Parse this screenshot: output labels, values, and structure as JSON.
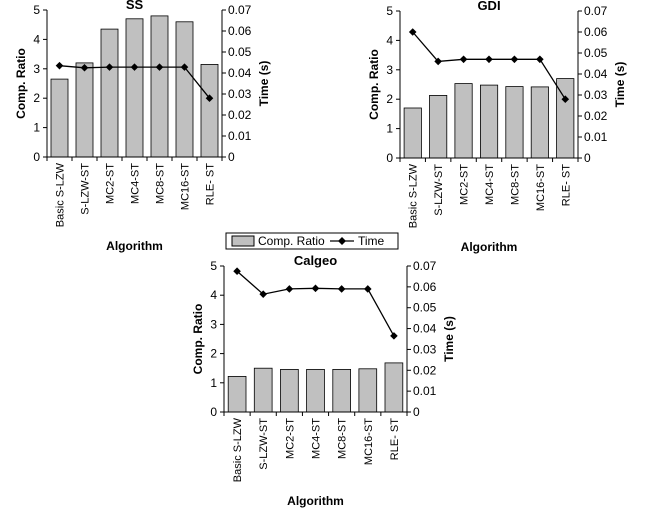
{
  "colors": {
    "bar_fill": "#c0c0c0",
    "bar_stroke": "#000000",
    "line": "#000000",
    "marker": "#000000",
    "background": "#ffffff"
  },
  "legend": {
    "items": [
      {
        "label": "Comp. Ratio",
        "symbol": "bar"
      },
      {
        "label": "Time",
        "symbol": "line-diamond"
      }
    ],
    "placement": "center"
  },
  "chart_data": [
    {
      "type": "bar",
      "title": "SS",
      "xlabel": "Algorithm",
      "ylabel": "Comp. Ratio",
      "y2label": "Time (s)",
      "categories": [
        "Basic S-LZW",
        "S-LZW-ST",
        "MC2-ST",
        "MC4-ST",
        "MC8-ST",
        "MC16-ST",
        "RLE- ST"
      ],
      "ylim": [
        0,
        5
      ],
      "yticks": [
        0,
        1,
        2,
        3,
        4,
        5
      ],
      "y2lim": [
        0,
        0.07
      ],
      "y2ticks": [
        "0",
        "0.01",
        "0.02",
        "0.03",
        "0.04",
        "0.05",
        "0.06",
        "0.07"
      ],
      "grid": false,
      "series": [
        {
          "name": "Comp. Ratio",
          "type": "bar",
          "axis": "left",
          "values": [
            2.65,
            3.2,
            4.35,
            4.7,
            4.8,
            4.6,
            3.15
          ]
        },
        {
          "name": "Time",
          "type": "line",
          "axis": "right",
          "marker": "diamond",
          "values": [
            0.0435,
            0.0425,
            0.0428,
            0.0428,
            0.0428,
            0.0428,
            0.028
          ]
        }
      ]
    },
    {
      "type": "bar",
      "title": "GDI",
      "xlabel": "Algorithm",
      "ylabel": "Comp. Ratio",
      "y2label": "Time (s)",
      "categories": [
        "Basic S-LZW",
        "S-LZW-ST",
        "MC2-ST",
        "MC4-ST",
        "MC8-ST",
        "MC16-ST",
        "RLE- ST"
      ],
      "ylim": [
        0,
        5
      ],
      "yticks": [
        0,
        1,
        2,
        3,
        4,
        5
      ],
      "y2lim": [
        0,
        0.07
      ],
      "y2ticks": [
        "0",
        "0.01",
        "0.02",
        "0.03",
        "0.04",
        "0.05",
        "0.06",
        "0.07"
      ],
      "grid": false,
      "series": [
        {
          "name": "Comp. Ratio",
          "type": "bar",
          "axis": "left",
          "values": [
            1.7,
            2.13,
            2.53,
            2.48,
            2.43,
            2.42,
            2.7
          ]
        },
        {
          "name": "Time",
          "type": "line",
          "axis": "right",
          "marker": "diamond",
          "values": [
            0.06,
            0.046,
            0.047,
            0.047,
            0.047,
            0.047,
            0.028
          ]
        }
      ]
    },
    {
      "type": "bar",
      "title": "Calgeo",
      "xlabel": "Algorithm",
      "ylabel": "Comp. Ratio",
      "y2label": "Time (s)",
      "categories": [
        "Basic S-LZW",
        "S-LZW-ST",
        "MC2-ST",
        "MC4-ST",
        "MC8-ST",
        "MC16-ST",
        "RLE- ST"
      ],
      "ylim": [
        0,
        5
      ],
      "yticks": [
        0,
        1,
        2,
        3,
        4,
        5
      ],
      "y2lim": [
        0,
        0.07
      ],
      "y2ticks": [
        "0",
        "0.01",
        "0.02",
        "0.03",
        "0.04",
        "0.05",
        "0.06",
        "0.07"
      ],
      "grid": false,
      "series": [
        {
          "name": "Comp. Ratio",
          "type": "bar",
          "axis": "left",
          "values": [
            1.22,
            1.5,
            1.46,
            1.46,
            1.46,
            1.48,
            1.68
          ]
        },
        {
          "name": "Time",
          "type": "line",
          "axis": "right",
          "marker": "diamond",
          "values": [
            0.0675,
            0.0565,
            0.059,
            0.0593,
            0.059,
            0.059,
            0.0365
          ]
        }
      ]
    }
  ]
}
